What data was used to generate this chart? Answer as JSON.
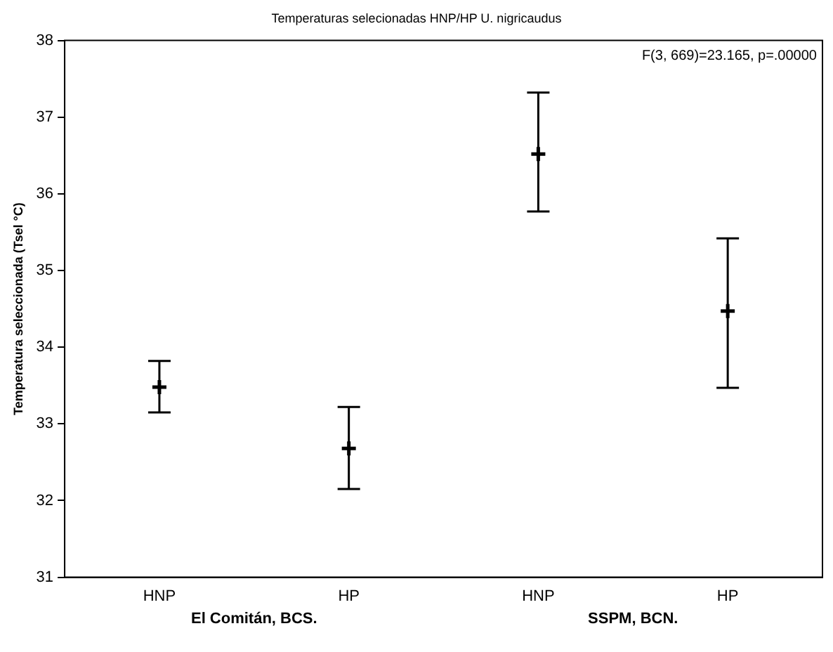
{
  "chart_data": {
    "type": "scatter",
    "title": "Temperaturas selecionadas HNP/HP U. nigricaudus",
    "ylabel": "Temperatura seleccionada (Tsel °C)",
    "categories": [
      "HNP",
      "HP",
      "HNP",
      "HP"
    ],
    "values": [
      33.48,
      32.68,
      36.52,
      34.47
    ],
    "errors": [
      [
        33.15,
        33.82
      ],
      [
        32.15,
        33.22
      ],
      [
        35.77,
        37.32
      ],
      [
        33.47,
        35.42
      ]
    ],
    "color": "#000000",
    "marker": "cross",
    "grid": false,
    "ylim": [
      31,
      38
    ],
    "yticks": [
      31,
      32,
      33,
      34,
      35,
      36,
      37,
      38
    ],
    "annotations": [
      "F(3, 669)=23.165, p=.00000",
      "El Comitán, BCS.",
      "SSPM, BCN."
    ]
  }
}
